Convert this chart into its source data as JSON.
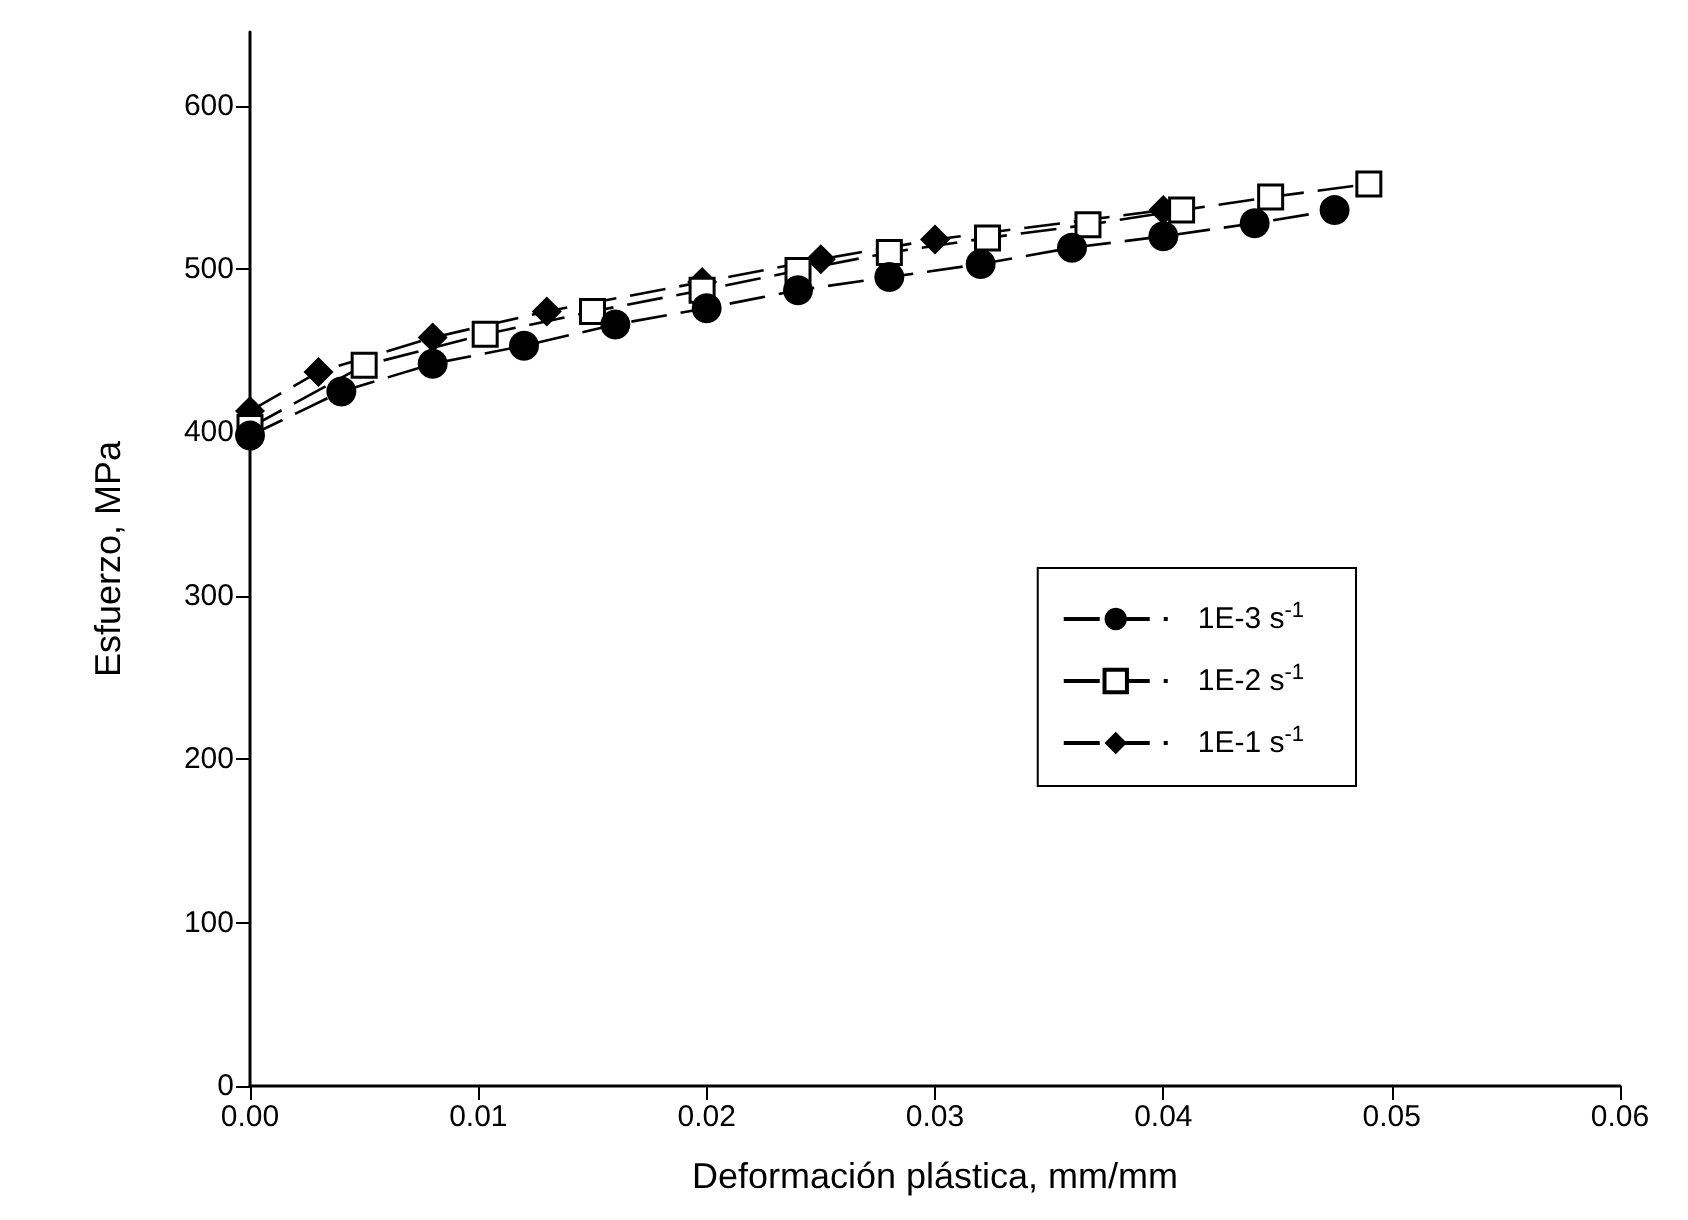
{
  "chart_data": {
    "type": "line",
    "xlabel": "Deformación plástica, mm/mm",
    "ylabel": "Esfuerzo, MPa",
    "xlim": [
      0,
      0.06
    ],
    "ylim": [
      0,
      645
    ],
    "xticks": [
      {
        "value": 0,
        "label": "0.00"
      },
      {
        "value": 0.01,
        "label": "0.01"
      },
      {
        "value": 0.02,
        "label": "0.02"
      },
      {
        "value": 0.03,
        "label": "0.03"
      },
      {
        "value": 0.04,
        "label": "0.04"
      },
      {
        "value": 0.05,
        "label": "0.05"
      },
      {
        "value": 0.06,
        "label": "0.06"
      }
    ],
    "yticks": [
      0,
      100,
      200,
      300,
      400,
      500,
      600
    ],
    "grid": false,
    "legend": "right",
    "line_style": "dashed",
    "series": [
      {
        "name": "1E-3 s$^{-1}$",
        "color": "#000000",
        "marker": "circle",
        "x": [
          0,
          0.004,
          0.008,
          0.012,
          0.016,
          0.02,
          0.024,
          0.028,
          0.032,
          0.036,
          0.04,
          0.044,
          0.0475
        ],
        "values": [
          398,
          425,
          442,
          453,
          466,
          476,
          487,
          495,
          503,
          513,
          520,
          528,
          536
        ]
      },
      {
        "name": "1E-2 s$^{-1}$",
        "color": "#000000",
        "marker": "square",
        "x": [
          0,
          0.005,
          0.0103,
          0.015,
          0.0198,
          0.024,
          0.028,
          0.0323,
          0.0367,
          0.0408,
          0.0447,
          0.049
        ],
        "values": [
          403,
          441,
          460,
          474,
          487,
          499,
          510,
          519,
          527,
          536,
          544,
          552
        ]
      },
      {
        "name": "1E-1 s$^{-1}$",
        "color": "#000000",
        "marker": "diamond",
        "x": [
          0,
          0.003,
          0.008,
          0.013,
          0.0198,
          0.025,
          0.03,
          0.04
        ],
        "values": [
          413,
          437,
          458,
          474,
          492,
          506,
          518,
          536
        ]
      }
    ]
  }
}
